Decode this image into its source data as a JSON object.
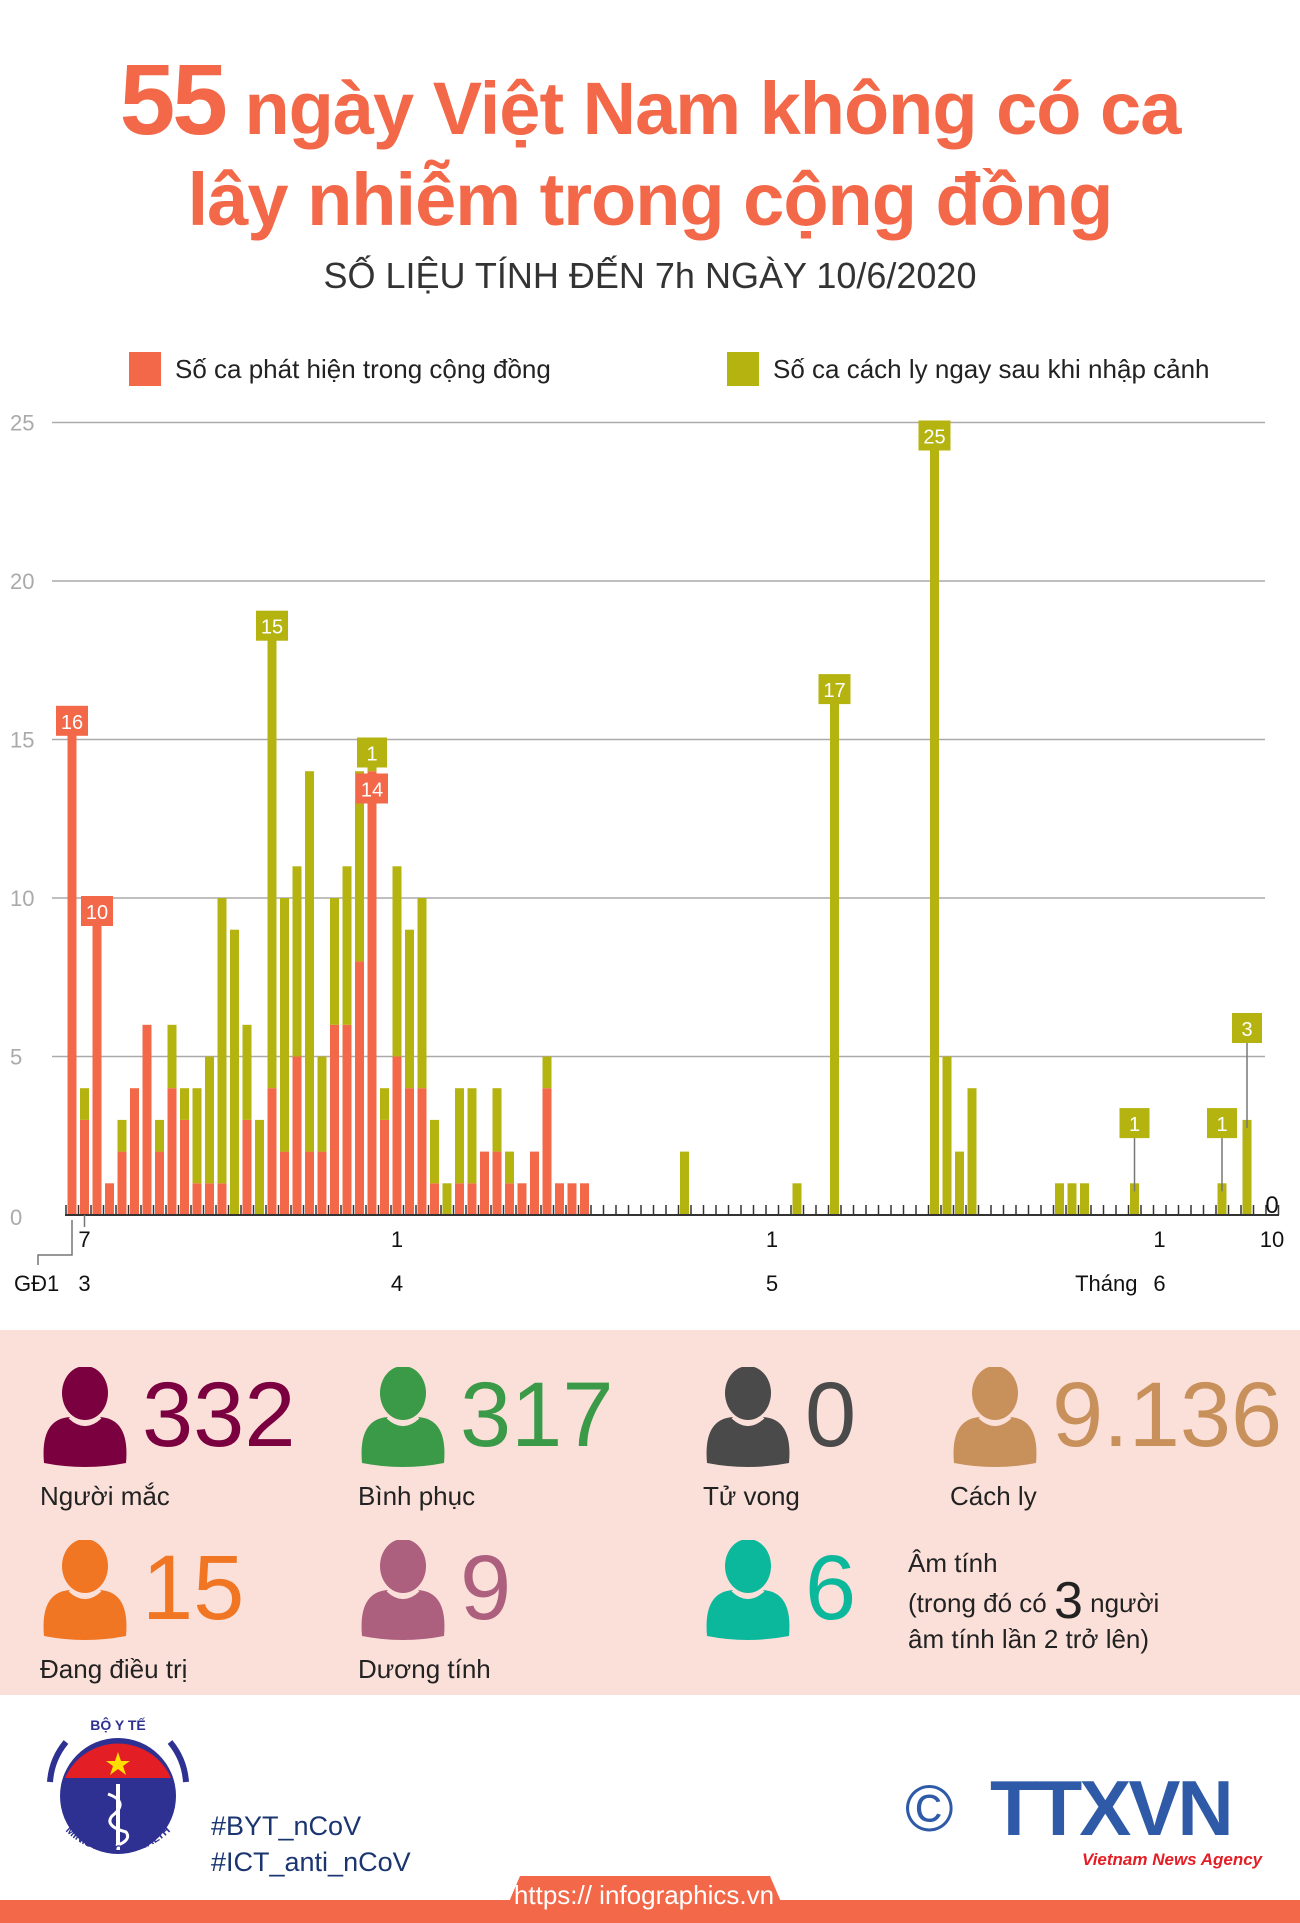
{
  "header": {
    "title_number": "55",
    "title_line1": "ngày Việt Nam không có ca",
    "title_line2": "lây nhiễm trong cộng đồng",
    "subtitle": "SỐ LIỆU TÍNH ĐẾN 7h NGÀY 10/6/2020"
  },
  "colors": {
    "community": "#f26849",
    "imported": "#b5b30f",
    "title": "#f26849",
    "stats_background": "#fbe0da"
  },
  "chart_data": {
    "type": "bar",
    "stacked": true,
    "legend_position": "top",
    "grid": true,
    "ylim": [
      0,
      25
    ],
    "yticks": [
      "0",
      "5",
      "10",
      "15",
      "20",
      "25"
    ],
    "x_start": "6/3",
    "x_end": "10/6",
    "series": [
      {
        "name": "Số ca phát hiện trong cộng đồng",
        "key": "community",
        "color": "#f26849"
      },
      {
        "name": "Số ca cách ly ngay sau khi nhập cảnh",
        "key": "imported",
        "color": "#b5b30f"
      }
    ],
    "bars": [
      {
        "date": "6/3",
        "community": 16,
        "imported": 0
      },
      {
        "date": "7/3",
        "community": 3,
        "imported": 1
      },
      {
        "date": "8/3",
        "community": 10,
        "imported": 0
      },
      {
        "date": "9/3",
        "community": 1,
        "imported": 0
      },
      {
        "date": "10/3",
        "community": 2,
        "imported": 1
      },
      {
        "date": "11/3",
        "community": 4,
        "imported": 0
      },
      {
        "date": "12/3",
        "community": 6,
        "imported": 0
      },
      {
        "date": "13/3",
        "community": 2,
        "imported": 1
      },
      {
        "date": "14/3",
        "community": 4,
        "imported": 2
      },
      {
        "date": "15/3",
        "community": 3,
        "imported": 1
      },
      {
        "date": "16/3",
        "community": 1,
        "imported": 3
      },
      {
        "date": "17/3",
        "community": 1,
        "imported": 4
      },
      {
        "date": "18/3",
        "community": 1,
        "imported": 9
      },
      {
        "date": "19/3",
        "community": 0,
        "imported": 9
      },
      {
        "date": "20/3",
        "community": 3,
        "imported": 3
      },
      {
        "date": "21/3",
        "community": 0,
        "imported": 3
      },
      {
        "date": "22/3",
        "community": 4,
        "imported": 15
      },
      {
        "date": "23/3",
        "community": 2,
        "imported": 8
      },
      {
        "date": "24/3",
        "community": 5,
        "imported": 6
      },
      {
        "date": "25/3",
        "community": 2,
        "imported": 12
      },
      {
        "date": "26/3",
        "community": 2,
        "imported": 3
      },
      {
        "date": "27/3",
        "community": 6,
        "imported": 4
      },
      {
        "date": "28/3",
        "community": 6,
        "imported": 5
      },
      {
        "date": "29/3",
        "community": 8,
        "imported": 6
      },
      {
        "date": "30/3",
        "community": 14,
        "imported": 1
      },
      {
        "date": "31/3",
        "community": 3,
        "imported": 1
      },
      {
        "date": "1/4",
        "community": 5,
        "imported": 6
      },
      {
        "date": "2/4",
        "community": 4,
        "imported": 5
      },
      {
        "date": "3/4",
        "community": 4,
        "imported": 6
      },
      {
        "date": "4/4",
        "community": 1,
        "imported": 2
      },
      {
        "date": "5/4",
        "community": 0,
        "imported": 1
      },
      {
        "date": "6/4",
        "community": 1,
        "imported": 3
      },
      {
        "date": "7/4",
        "community": 1,
        "imported": 3
      },
      {
        "date": "8/4",
        "community": 2,
        "imported": 0
      },
      {
        "date": "9/4",
        "community": 2,
        "imported": 2
      },
      {
        "date": "10/4",
        "community": 1,
        "imported": 1
      },
      {
        "date": "11/4",
        "community": 1,
        "imported": 0
      },
      {
        "date": "12/4",
        "community": 2,
        "imported": 0
      },
      {
        "date": "13/4",
        "community": 4,
        "imported": 1
      },
      {
        "date": "14/4",
        "community": 1,
        "imported": 0
      },
      {
        "date": "15/4",
        "community": 1,
        "imported": 0
      },
      {
        "date": "16/4",
        "community": 1,
        "imported": 0
      },
      {
        "date": "24/4",
        "community": 0,
        "imported": 2
      },
      {
        "date": "3/5",
        "community": 0,
        "imported": 1
      },
      {
        "date": "6/5",
        "community": 0,
        "imported": 17
      },
      {
        "date": "14/5",
        "community": 0,
        "imported": 25
      },
      {
        "date": "15/5",
        "community": 0,
        "imported": 5
      },
      {
        "date": "16/5",
        "community": 0,
        "imported": 2
      },
      {
        "date": "17/5",
        "community": 0,
        "imported": 4
      },
      {
        "date": "24/5",
        "community": 0,
        "imported": 1
      },
      {
        "date": "25/5",
        "community": 0,
        "imported": 1
      },
      {
        "date": "26/5",
        "community": 0,
        "imported": 1
      },
      {
        "date": "30/5",
        "community": 0,
        "imported": 1
      },
      {
        "date": "6/6",
        "community": 0,
        "imported": 1
      },
      {
        "date": "8/6",
        "community": 0,
        "imported": 3
      }
    ],
    "data_labels": [
      {
        "date": "6/3",
        "series": "community",
        "text": "16"
      },
      {
        "date": "8/3",
        "series": "community",
        "text": "10"
      },
      {
        "date": "22/3",
        "series": "imported",
        "text": "15"
      },
      {
        "date": "30/3",
        "series": "imported",
        "text": "1"
      },
      {
        "date": "30/3",
        "series": "community",
        "text": "14"
      },
      {
        "date": "6/5",
        "series": "imported",
        "text": "17"
      },
      {
        "date": "14/5",
        "series": "imported",
        "text": "25"
      },
      {
        "date": "30/5",
        "series": "imported",
        "text": "1"
      },
      {
        "date": "6/6",
        "series": "imported",
        "text": "1"
      },
      {
        "date": "8/6",
        "series": "imported",
        "text": "3"
      },
      {
        "date": "10/6",
        "series": "none",
        "text": "0"
      }
    ],
    "x_day_labels": [
      {
        "date": "7/3",
        "text": "7"
      },
      {
        "date": "1/4",
        "text": "1"
      },
      {
        "date": "1/5",
        "text": "1"
      },
      {
        "date": "1/6",
        "text": "1"
      },
      {
        "date": "10/6",
        "text": "10"
      }
    ],
    "x_month_labels": [
      {
        "date": "7/3",
        "text": "3"
      },
      {
        "date": "1/4",
        "text": "4"
      },
      {
        "date": "1/5",
        "text": "5"
      },
      {
        "date": "1/6",
        "text": "6"
      }
    ],
    "month_prefix": "Tháng",
    "phase_label": "GĐ1"
  },
  "stats": [
    {
      "value": "332",
      "label": "Người mắc",
      "color": "#7b0040"
    },
    {
      "value": "317",
      "label": "Bình phục",
      "color": "#3a9a48"
    },
    {
      "value": "0",
      "label": "Tử vong",
      "color": "#4a4a4a"
    },
    {
      "value": "9.136",
      "label": "Cách ly",
      "color": "#c8905a"
    },
    {
      "value": "15",
      "label": "Đang điều trị",
      "color": "#f07623"
    },
    {
      "value": "9",
      "label": "Dương tính",
      "color": "#ad5f7e"
    },
    {
      "value": "6",
      "label": "",
      "color": "#0cb89c"
    }
  ],
  "negative_note": {
    "line1": "Âm tính",
    "line2_pre": "(trong đó có ",
    "line2_num": "3",
    "line2_post": " người",
    "line3": "âm tính lần 2 trở lên)"
  },
  "footer": {
    "moh_logo_top": "BỘ Y TẾ",
    "moh_logo_bottom": "MINISTRY OF HEALTH",
    "hashtag1": "#BYT_nCoV",
    "hashtag2": "#ICT_anti_nCoV",
    "copyright_symbol": "©",
    "agency_logo": "TTXVN",
    "agency_name": "Vietnam News Agency",
    "url": "https:// infographics.vn"
  }
}
